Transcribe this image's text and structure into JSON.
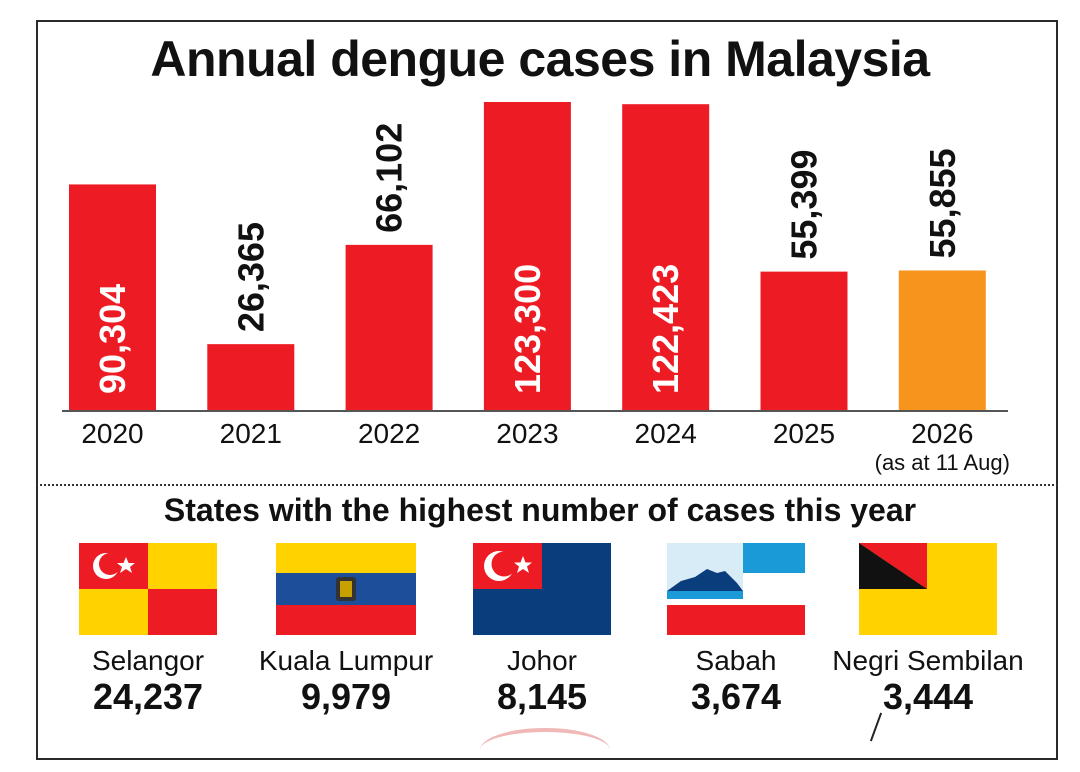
{
  "title": "Annual dengue cases in Malaysia",
  "chart_data": {
    "type": "bar",
    "title": "Annual dengue cases in Malaysia",
    "categories": [
      "2020",
      "2021",
      "2022",
      "2023",
      "2024",
      "2025",
      "2026"
    ],
    "category_notes": [
      "",
      "",
      "",
      "",
      "",
      "",
      "(as at 11 Aug)"
    ],
    "values": [
      90304,
      26365,
      66102,
      123300,
      122423,
      55399,
      55855
    ],
    "value_labels": [
      "90,304",
      "26,365",
      "66,102",
      "123,300",
      "122,423",
      "55,399",
      "55,855"
    ],
    "label_inside": [
      true,
      false,
      false,
      true,
      true,
      false,
      false
    ],
    "colors": [
      "#ed1c24",
      "#ed1c24",
      "#ed1c24",
      "#ed1c24",
      "#ed1c24",
      "#ed1c24",
      "#f7941d"
    ],
    "ylim": [
      0,
      123300
    ],
    "grid": false,
    "xlabel": "",
    "ylabel": ""
  },
  "states_section": {
    "title": "States with the highest number of cases this year",
    "states": [
      {
        "name": "Selangor",
        "count": "24,237",
        "flag": "selangor-flag"
      },
      {
        "name": "Kuala Lumpur",
        "count": "9,979",
        "flag": "kuala-lumpur-flag"
      },
      {
        "name": "Johor",
        "count": "8,145",
        "flag": "johor-flag"
      },
      {
        "name": "Sabah",
        "count": "3,674",
        "flag": "sabah-flag"
      },
      {
        "name": "Negri Sembilan",
        "count": "3,444",
        "flag": "negri-sembilan-flag"
      }
    ]
  }
}
